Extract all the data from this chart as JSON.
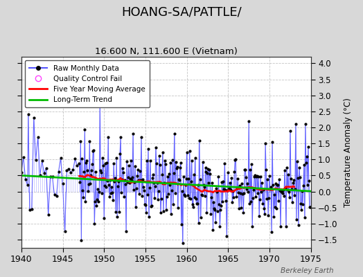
{
  "title": "HOANG-SA/PATTLE/",
  "subtitle": "16.600 N, 111.600 E (Vietnam)",
  "ylabel_right": "Temperature Anomaly (°C)",
  "watermark": "Berkeley Earth",
  "xlim": [
    1940,
    1975
  ],
  "ylim": [
    -1.75,
    4.2
  ],
  "yticks": [
    -1.5,
    -1,
    -0.5,
    0,
    0.5,
    1,
    1.5,
    2,
    2.5,
    3,
    3.5,
    4
  ],
  "xticks": [
    1940,
    1945,
    1950,
    1955,
    1960,
    1965,
    1970,
    1975
  ],
  "fig_bg_color": "#d8d8d8",
  "plot_bg_color": "#ffffff",
  "raw_line_color": "#5555ff",
  "raw_dot_color": "#000000",
  "ma_color": "#ff0000",
  "trend_color": "#00bb00",
  "qc_color": "#ff44ff",
  "seed": 17,
  "start_year": 1940.0,
  "sparse_end_year": 1947.0,
  "dense_start_year": 1947.0,
  "end_year": 1975.0
}
